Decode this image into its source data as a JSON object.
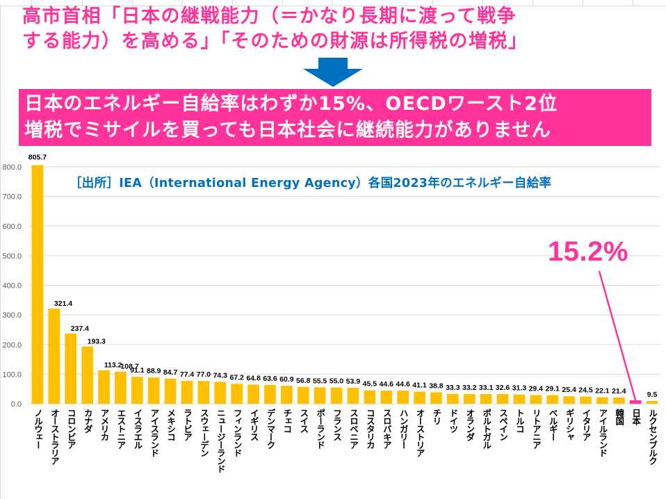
{
  "headline": {
    "line1": "高市首相「日本の継戦能力（＝かなり長期に渡って戦争",
    "line2": "する能力）を高める」「そのための財源は所得税の増税」"
  },
  "banner": {
    "line1": "日本のエネルギー自給率はわずか15%、OECDワースト2位",
    "line2": "増税でミサイルを買っても日本社会に継続能力がありません"
  },
  "callout": {
    "value_label": "15.2%",
    "target_category": "日本"
  },
  "colors": {
    "headline": "#ff3399",
    "banner_bg": "#ff3399",
    "arrow": "#0070c0",
    "source_text": "#0070c0",
    "bar_default": "#ffc000",
    "bar_highlight": "#ff3399",
    "gridline": "#d9d9d9"
  },
  "chart_data": {
    "type": "bar",
    "title": "［出所］IEA（International Energy Agency）各国2023年のエネルギー自給率",
    "xlabel": "",
    "ylabel": "",
    "ylim": [
      0,
      800
    ],
    "yticks": [
      "0.0",
      "100.0",
      "200.0",
      "300.0",
      "400.0",
      "500.0",
      "600.0",
      "700.0",
      "800.0"
    ],
    "grid": true,
    "legend": "none",
    "categories": [
      "ノルウェー",
      "オーストラリア",
      "コロンビア",
      "カナダ",
      "アメリカ",
      "エストニア",
      "イスラエル",
      "アイスランド",
      "メキシコ",
      "ラトビア",
      "スウェーデン",
      "ニュージーランド",
      "フィンランド",
      "イギリス",
      "デンマーク",
      "チェコ",
      "スイス",
      "ポーランド",
      "フランス",
      "スロベニア",
      "コスタリカ",
      "スロバキア",
      "ハンガリー",
      "オーストリア",
      "チリ",
      "ドイツ",
      "オランダ",
      "ポルトガル",
      "スペイン",
      "トルコ",
      "リトアニア",
      "ベルギー",
      "ギリシャ",
      "イタリア",
      "アイルランド",
      "韓国",
      "日本",
      "ルクセンブルク"
    ],
    "values": [
      805.7,
      321.4,
      237.4,
      193.3,
      113.2,
      108.7,
      91.1,
      88.9,
      84.7,
      77.4,
      77.0,
      74.3,
      67.2,
      64.8,
      63.6,
      60.9,
      56.8,
      55.5,
      55.0,
      53.9,
      45.5,
      44.6,
      44.6,
      41.1,
      38.8,
      33.3,
      33.2,
      33.1,
      32.6,
      31.3,
      29.4,
      29.1,
      25.4,
      24.5,
      22.1,
      21.4,
      15.2,
      9.5
    ],
    "value_labels": [
      "805.7",
      "321.4",
      "237.4",
      "193.3",
      "113.2",
      "108.7",
      "91.1",
      "88.9",
      "84.7",
      "77.4",
      "77.0",
      "74.3",
      "67.2",
      "64.8",
      "63.6",
      "60.9",
      "56.8",
      "55.5",
      "55.0",
      "53.9",
      "45.5",
      "44.6",
      "44.6",
      "41.1",
      "38.8",
      "33.3",
      "33.2",
      "33.1",
      "32.6",
      "31.3",
      "29.4",
      "29.1",
      "25.4",
      "24.5",
      "22.1",
      "21.4",
      "",
      "9.5"
    ],
    "highlight_index": 36,
    "unit": "%"
  }
}
